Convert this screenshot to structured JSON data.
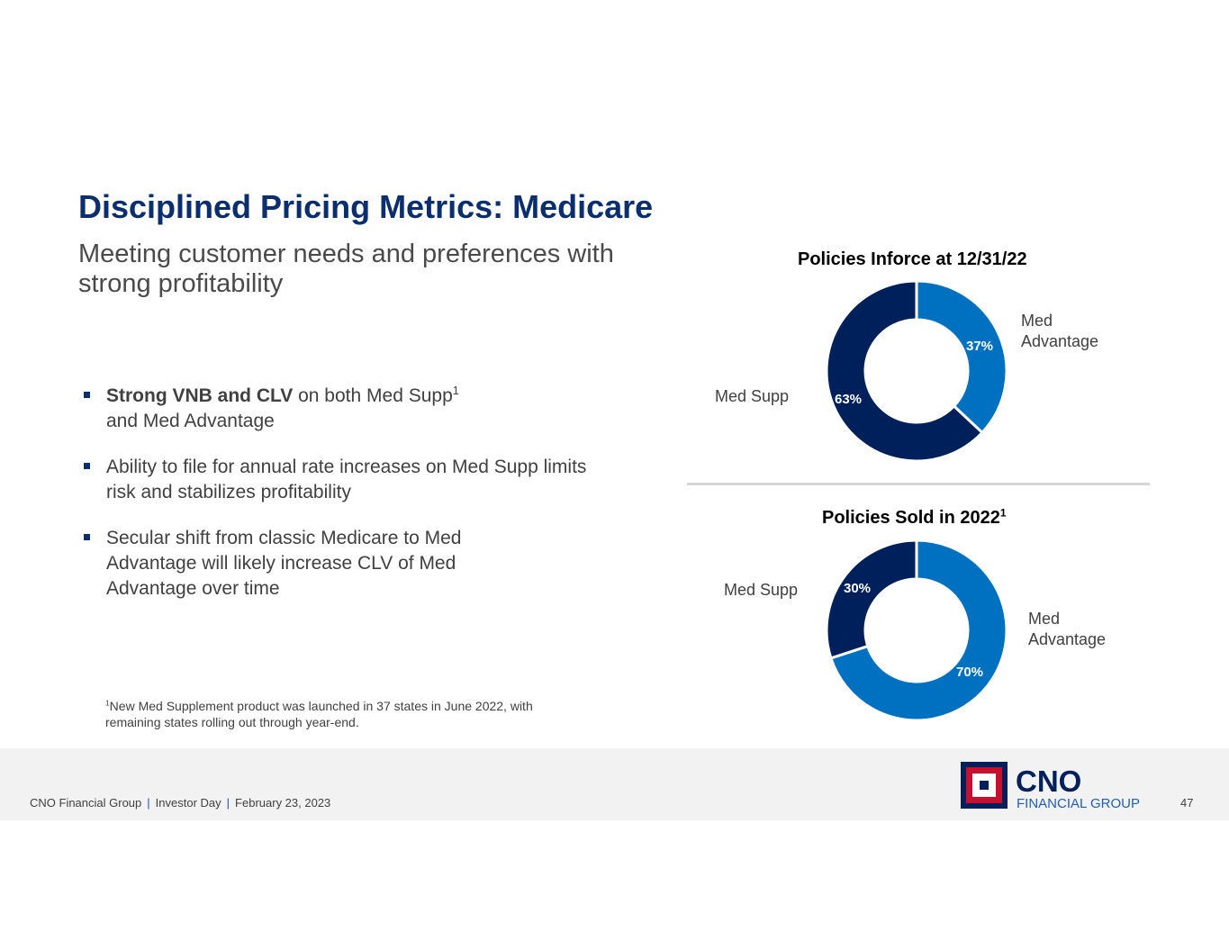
{
  "slide": {
    "title": "Disciplined Pricing Metrics: Medicare",
    "subtitle": "Meeting customer needs and preferences with strong profitability",
    "bullets": [
      {
        "bold": "Strong VNB and CLV",
        "text": " on both Med Supp",
        "sup": "1",
        "text2": " and Med Advantage"
      },
      {
        "text": "Ability to file for annual rate increases on Med Supp limits risk and stabilizes profitability"
      },
      {
        "text": "Secular shift from classic Medicare to Med Advantage will likely increase CLV of Med Advantage over time"
      }
    ],
    "footnote": {
      "sup": "1",
      "text": "New Med Supplement product was launched in 37 states in June 2022, with remaining states rolling out through year-end."
    }
  },
  "chart_data": [
    {
      "type": "pie",
      "title": "Policies Inforce at 12/31/22",
      "title_sup": "",
      "categories": [
        "Med Advantage",
        "Med Supp"
      ],
      "values": [
        37,
        63
      ],
      "labels": [
        "37%",
        "63%"
      ],
      "colors": [
        "#0070c0",
        "#00205b"
      ],
      "donut": true
    },
    {
      "type": "pie",
      "title": "Policies Sold in 2022",
      "title_sup": "1",
      "categories": [
        "Med Advantage",
        "Med Supp"
      ],
      "values": [
        70,
        30
      ],
      "labels": [
        "70%",
        "30%"
      ],
      "colors": [
        "#0070c0",
        "#00205b"
      ],
      "donut": true
    }
  ],
  "footer": {
    "company": "CNO Financial Group",
    "event": "Investor Day",
    "date": "February 23, 2023",
    "separator": "|",
    "page_number": "47"
  },
  "logo": {
    "line1": "CNO",
    "line2": "FINANCIAL GROUP"
  },
  "colors": {
    "title": "#0a2e6e",
    "dark_blue": "#00205b",
    "light_blue": "#0070c0",
    "logo_red": "#c8102e"
  }
}
